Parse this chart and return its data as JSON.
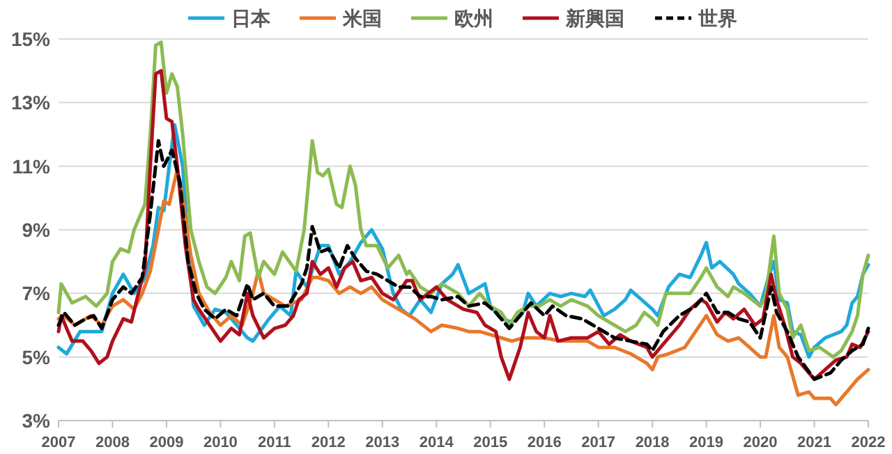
{
  "chart_data": {
    "type": "line",
    "legend": "top",
    "grid": "y",
    "marker": "none",
    "xlim": [
      2007,
      2022
    ],
    "xticks": [
      2007,
      2008,
      2009,
      2010,
      2011,
      2012,
      2013,
      2014,
      2015,
      2016,
      2017,
      2018,
      2019,
      2020,
      2021,
      2022
    ],
    "ylim": [
      3,
      15
    ],
    "yticks": [
      {
        "value": 3,
        "label": "3%"
      },
      {
        "value": 5,
        "label": "5%"
      },
      {
        "value": 7,
        "label": "7%"
      },
      {
        "value": 9,
        "label": "9%"
      },
      {
        "value": 11,
        "label": "11%"
      },
      {
        "value": 13,
        "label": "13%"
      },
      {
        "value": 15,
        "label": "15%"
      }
    ],
    "series": [
      {
        "name": "日本",
        "color": "#1fa9db",
        "line_style": "solid",
        "x": [
          2007.0,
          2007.15,
          2007.4,
          2007.8,
          2008.0,
          2008.2,
          2008.4,
          2008.6,
          2008.75,
          2008.85,
          2008.95,
          2009.05,
          2009.15,
          2009.3,
          2009.4,
          2009.5,
          2009.7,
          2009.9,
          2010.1,
          2010.3,
          2010.5,
          2010.6,
          2010.9,
          2011.1,
          2011.3,
          2011.4,
          2011.6,
          2011.85,
          2012.0,
          2012.2,
          2012.4,
          2012.6,
          2012.8,
          2013.0,
          2013.2,
          2013.35,
          2013.5,
          2013.7,
          2013.9,
          2014.1,
          2014.3,
          2014.4,
          2014.6,
          2014.9,
          2015.0,
          2015.2,
          2015.4,
          2015.6,
          2015.7,
          2015.85,
          2016.1,
          2016.3,
          2016.5,
          2016.75,
          2016.85,
          2017.1,
          2017.3,
          2017.5,
          2017.6,
          2017.8,
          2018.0,
          2018.1,
          2018.3,
          2018.5,
          2018.7,
          2018.9,
          2019.0,
          2019.1,
          2019.25,
          2019.5,
          2019.6,
          2019.8,
          2020.0,
          2020.15,
          2020.25,
          2020.35,
          2020.5,
          2020.6,
          2020.75,
          2020.9,
          2021.0,
          2021.2,
          2021.5,
          2021.6,
          2021.7,
          2021.8,
          2021.9,
          2022.0
        ],
        "values": [
          5.3,
          5.1,
          5.8,
          5.8,
          7.0,
          7.6,
          7.0,
          7.5,
          8.5,
          9.7,
          9.6,
          11.0,
          12.3,
          11.0,
          8.5,
          6.6,
          6.0,
          6.5,
          6.4,
          6.0,
          5.6,
          5.5,
          6.2,
          6.6,
          6.3,
          7.7,
          7.2,
          8.5,
          8.5,
          7.6,
          8.0,
          8.6,
          9.0,
          8.4,
          7.0,
          6.5,
          6.3,
          6.8,
          6.4,
          7.3,
          7.6,
          7.9,
          7.0,
          7.3,
          6.6,
          6.2,
          6.1,
          6.4,
          7.0,
          6.6,
          7.0,
          6.9,
          7.0,
          6.9,
          7.1,
          6.3,
          6.5,
          6.8,
          7.1,
          6.8,
          6.5,
          6.3,
          7.2,
          7.6,
          7.5,
          8.2,
          8.6,
          7.8,
          8.0,
          7.6,
          7.3,
          7.0,
          6.6,
          7.5,
          8.0,
          6.8,
          6.7,
          5.8,
          5.7,
          5.0,
          5.3,
          5.6,
          5.8,
          6.0,
          6.7,
          6.9,
          7.6,
          7.9
        ]
      },
      {
        "name": "米国",
        "color": "#e8782a",
        "line_style": "solid",
        "x": [
          2007.0,
          2007.1,
          2007.3,
          2007.6,
          2007.8,
          2008.0,
          2008.2,
          2008.4,
          2008.55,
          2008.7,
          2008.85,
          2008.95,
          2009.05,
          2009.2,
          2009.3,
          2009.45,
          2009.6,
          2009.8,
          2010.0,
          2010.2,
          2010.4,
          2010.6,
          2010.7,
          2010.8,
          2011.0,
          2011.2,
          2011.5,
          2011.7,
          2011.8,
          2012.0,
          2012.2,
          2012.4,
          2012.6,
          2012.8,
          2013.0,
          2013.3,
          2013.6,
          2013.9,
          2014.1,
          2014.4,
          2014.6,
          2014.8,
          2015.0,
          2015.2,
          2015.4,
          2015.6,
          2015.8,
          2016.0,
          2016.3,
          2016.6,
          2016.8,
          2017.0,
          2017.3,
          2017.6,
          2017.9,
          2018.0,
          2018.1,
          2018.3,
          2018.6,
          2018.8,
          2019.0,
          2019.2,
          2019.4,
          2019.6,
          2019.8,
          2020.0,
          2020.1,
          2020.25,
          2020.35,
          2020.5,
          2020.7,
          2020.9,
          2021.0,
          2021.3,
          2021.4,
          2021.6,
          2021.8,
          2022.0
        ],
        "values": [
          6.2,
          6.3,
          6.0,
          6.3,
          6.0,
          6.6,
          6.8,
          6.5,
          7.0,
          7.7,
          9.0,
          9.9,
          9.8,
          10.9,
          10.0,
          8.2,
          7.0,
          6.4,
          6.0,
          6.3,
          6.0,
          7.0,
          7.7,
          7.0,
          6.8,
          6.6,
          6.8,
          7.5,
          7.5,
          7.4,
          7.0,
          7.2,
          7.0,
          7.2,
          6.8,
          6.5,
          6.2,
          5.8,
          6.0,
          5.9,
          5.8,
          5.8,
          5.7,
          5.6,
          5.5,
          5.6,
          5.6,
          5.6,
          5.5,
          5.5,
          5.5,
          5.3,
          5.3,
          5.1,
          4.8,
          4.6,
          5.0,
          5.1,
          5.3,
          5.8,
          6.3,
          5.7,
          5.5,
          5.6,
          5.3,
          5.0,
          5.0,
          6.3,
          5.3,
          5.0,
          3.8,
          3.9,
          3.7,
          3.7,
          3.5,
          3.9,
          4.3,
          4.6
        ]
      },
      {
        "name": "欧州",
        "color": "#8cbb52",
        "line_style": "solid",
        "x": [
          2007.0,
          2007.05,
          2007.25,
          2007.5,
          2007.7,
          2007.9,
          2008.0,
          2008.15,
          2008.3,
          2008.4,
          2008.6,
          2008.7,
          2008.8,
          2008.9,
          2009.0,
          2009.1,
          2009.2,
          2009.3,
          2009.45,
          2009.6,
          2009.75,
          2009.9,
          2010.1,
          2010.2,
          2010.35,
          2010.45,
          2010.55,
          2010.7,
          2010.8,
          2011.0,
          2011.15,
          2011.4,
          2011.55,
          2011.7,
          2011.8,
          2011.9,
          2012.0,
          2012.15,
          2012.25,
          2012.4,
          2012.5,
          2012.6,
          2012.7,
          2012.9,
          2013.1,
          2013.3,
          2013.45,
          2013.5,
          2013.7,
          2013.9,
          2014.1,
          2014.4,
          2014.6,
          2014.8,
          2015.0,
          2015.2,
          2015.35,
          2015.5,
          2015.7,
          2015.9,
          2016.1,
          2016.3,
          2016.5,
          2016.8,
          2017.0,
          2017.3,
          2017.5,
          2017.7,
          2017.85,
          2018.0,
          2018.1,
          2018.25,
          2018.5,
          2018.7,
          2018.9,
          2019.0,
          2019.2,
          2019.4,
          2019.5,
          2019.7,
          2020.0,
          2020.1,
          2020.25,
          2020.35,
          2020.5,
          2020.6,
          2020.75,
          2020.9,
          2021.1,
          2021.35,
          2021.5,
          2021.6,
          2021.7,
          2021.8,
          2021.9,
          2022.0
        ],
        "values": [
          6.4,
          7.3,
          6.7,
          6.9,
          6.6,
          7.0,
          8.0,
          8.4,
          8.3,
          9.0,
          9.8,
          12.0,
          14.8,
          14.9,
          13.3,
          13.9,
          13.5,
          12.0,
          9.0,
          8.0,
          7.2,
          7.0,
          7.5,
          8.0,
          7.4,
          8.8,
          8.9,
          7.5,
          8.0,
          7.6,
          8.3,
          7.7,
          9.0,
          11.8,
          10.8,
          10.7,
          10.9,
          9.8,
          9.7,
          11.0,
          10.4,
          9.0,
          8.5,
          8.5,
          7.8,
          8.2,
          7.6,
          7.7,
          7.2,
          7.0,
          7.3,
          7.0,
          6.6,
          7.0,
          6.6,
          6.4,
          6.0,
          6.4,
          6.6,
          6.6,
          6.8,
          6.6,
          6.8,
          6.6,
          6.3,
          6.0,
          5.8,
          6.0,
          6.4,
          6.2,
          6.0,
          7.0,
          7.0,
          7.0,
          7.5,
          7.8,
          7.2,
          6.9,
          7.2,
          7.0,
          6.6,
          6.9,
          8.8,
          7.0,
          6.5,
          5.6,
          6.0,
          5.2,
          5.3,
          5.0,
          5.2,
          5.5,
          5.8,
          6.3,
          7.6,
          8.2
        ]
      },
      {
        "name": "新興国",
        "color": "#b0101e",
        "line_style": "solid",
        "x": [
          2007.0,
          2007.05,
          2007.25,
          2007.45,
          2007.6,
          2007.75,
          2007.9,
          2008.0,
          2008.2,
          2008.35,
          2008.45,
          2008.6,
          2008.7,
          2008.8,
          2008.9,
          2009.0,
          2009.1,
          2009.2,
          2009.35,
          2009.5,
          2009.6,
          2009.8,
          2010.0,
          2010.2,
          2010.35,
          2010.5,
          2010.6,
          2010.8,
          2011.0,
          2011.2,
          2011.35,
          2011.45,
          2011.6,
          2011.7,
          2011.85,
          2012.0,
          2012.15,
          2012.3,
          2012.45,
          2012.6,
          2012.8,
          2013.0,
          2013.2,
          2013.45,
          2013.55,
          2013.7,
          2014.0,
          2014.2,
          2014.5,
          2014.75,
          2014.9,
          2015.1,
          2015.2,
          2015.35,
          2015.55,
          2015.7,
          2015.85,
          2016.0,
          2016.1,
          2016.25,
          2016.5,
          2016.8,
          2017.0,
          2017.2,
          2017.4,
          2017.6,
          2017.9,
          2018.0,
          2018.2,
          2018.5,
          2018.7,
          2018.9,
          2019.0,
          2019.2,
          2019.35,
          2019.5,
          2019.7,
          2019.9,
          2020.05,
          2020.2,
          2020.3,
          2020.45,
          2020.6,
          2020.75,
          2021.0,
          2021.2,
          2021.4,
          2021.6,
          2021.7,
          2021.85,
          2022.0
        ],
        "values": [
          5.8,
          6.3,
          5.5,
          5.5,
          5.2,
          4.8,
          5.0,
          5.5,
          6.2,
          6.1,
          6.8,
          7.8,
          11.0,
          13.9,
          14.0,
          12.5,
          12.4,
          11.0,
          8.5,
          6.8,
          6.5,
          6.0,
          5.5,
          5.9,
          5.7,
          7.0,
          6.3,
          5.6,
          5.9,
          6.0,
          6.3,
          6.8,
          7.0,
          8.0,
          7.6,
          7.8,
          7.2,
          7.8,
          8.0,
          7.4,
          7.5,
          7.0,
          6.8,
          7.4,
          7.4,
          6.8,
          7.2,
          6.8,
          6.5,
          6.4,
          6.0,
          5.8,
          5.0,
          4.3,
          5.3,
          6.4,
          5.8,
          5.6,
          6.3,
          5.5,
          5.6,
          5.6,
          5.8,
          5.4,
          5.7,
          5.5,
          5.3,
          5.0,
          5.4,
          6.0,
          6.5,
          6.8,
          6.7,
          6.1,
          6.4,
          6.2,
          6.5,
          6.0,
          6.2,
          7.6,
          6.8,
          6.0,
          5.0,
          4.8,
          4.3,
          4.6,
          4.9,
          5.0,
          5.4,
          5.3,
          5.8
        ]
      },
      {
        "name": "世界",
        "color": "#000000",
        "line_style": "dashed",
        "x": [
          2007.0,
          2007.1,
          2007.3,
          2007.5,
          2007.65,
          2007.8,
          2008.0,
          2008.2,
          2008.35,
          2008.55,
          2008.7,
          2008.85,
          2008.95,
          2009.1,
          2009.25,
          2009.4,
          2009.55,
          2009.7,
          2009.9,
          2010.1,
          2010.3,
          2010.5,
          2010.6,
          2010.8,
          2011.0,
          2011.25,
          2011.5,
          2011.6,
          2011.7,
          2011.85,
          2012.0,
          2012.2,
          2012.35,
          2012.5,
          2012.7,
          2012.9,
          2013.1,
          2013.3,
          2013.5,
          2013.7,
          2013.9,
          2014.1,
          2014.4,
          2014.6,
          2014.9,
          2015.1,
          2015.35,
          2015.55,
          2015.75,
          2016.0,
          2016.15,
          2016.4,
          2016.7,
          2017.0,
          2017.3,
          2017.6,
          2017.9,
          2018.0,
          2018.2,
          2018.5,
          2018.8,
          2019.0,
          2019.2,
          2019.4,
          2019.6,
          2019.8,
          2020.0,
          2020.2,
          2020.3,
          2020.5,
          2020.7,
          2021.0,
          2021.3,
          2021.5,
          2021.7,
          2021.9,
          2022.0
        ],
        "values": [
          6.0,
          6.4,
          6.0,
          6.2,
          6.3,
          5.9,
          6.8,
          7.2,
          7.0,
          7.5,
          9.5,
          11.8,
          11.0,
          11.5,
          10.5,
          8.0,
          7.0,
          6.5,
          6.2,
          6.5,
          6.3,
          7.3,
          6.8,
          7.0,
          6.6,
          6.6,
          7.3,
          7.8,
          9.1,
          8.3,
          8.4,
          7.8,
          8.5,
          8.1,
          7.7,
          7.6,
          7.4,
          7.2,
          7.2,
          6.9,
          6.9,
          6.8,
          6.9,
          6.6,
          6.7,
          6.4,
          5.9,
          6.3,
          6.7,
          6.3,
          6.6,
          6.3,
          6.2,
          5.9,
          5.6,
          5.5,
          5.4,
          5.2,
          5.8,
          6.3,
          6.6,
          7.0,
          6.4,
          6.4,
          6.2,
          6.1,
          5.6,
          7.2,
          6.4,
          5.8,
          5.0,
          4.3,
          4.5,
          4.9,
          5.2,
          5.4,
          5.9
        ]
      }
    ]
  }
}
